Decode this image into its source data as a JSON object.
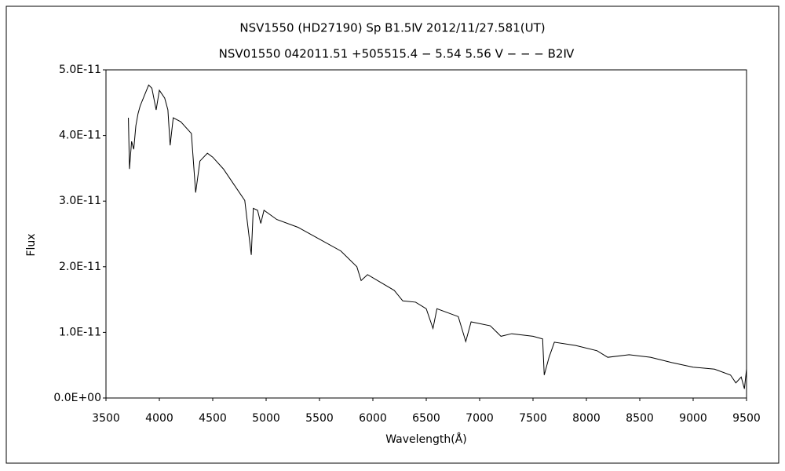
{
  "chart_data": {
    "type": "line",
    "title": "NSV1550 (HD27190)   Sp B1.5Ⅳ   2012/11/27.581(UT)",
    "subtitle": "NSV01550 042011.51 +505515.4 − 5.54 5.56 V − − − B2Ⅳ",
    "x_label": "Wavelength(Å)",
    "y_label": "Flux",
    "color": "#000000",
    "x": [
      3710,
      3720,
      3740,
      3760,
      3780,
      3800,
      3820,
      3850,
      3880,
      3900,
      3930,
      3970,
      4000,
      4050,
      4080,
      4101,
      4130,
      4200,
      4300,
      4340,
      4380,
      4450,
      4500,
      4600,
      4700,
      4800,
      4861,
      4880,
      4920,
      4950,
      4980,
      5100,
      5300,
      5500,
      5700,
      5850,
      5890,
      5950,
      6200,
      6280,
      6400,
      6500,
      6563,
      6600,
      6700,
      6800,
      6870,
      6920,
      7100,
      7200,
      7300,
      7500,
      7590,
      7605,
      7650,
      7700,
      7900,
      8100,
      8200,
      8400,
      8600,
      8800,
      9000,
      9200,
      9350,
      9400,
      9450,
      9480,
      9500
    ],
    "values": [
      4.27e-11,
      3.49e-11,
      3.91e-11,
      3.79e-11,
      4.15e-11,
      4.33e-11,
      4.45e-11,
      4.57e-11,
      4.69e-11,
      4.77e-11,
      4.72e-11,
      4.39e-11,
      4.69e-11,
      4.57e-11,
      4.39e-11,
      3.85e-11,
      4.27e-11,
      4.21e-11,
      4.03e-11,
      3.13e-11,
      3.61e-11,
      3.73e-11,
      3.67e-11,
      3.49e-11,
      3.25e-11,
      3.01e-11,
      2.18e-11,
      2.89e-11,
      2.86e-11,
      2.66e-11,
      2.86e-11,
      2.72e-11,
      2.6e-11,
      2.42e-11,
      2.24e-11,
      2e-11,
      1.79e-11,
      1.88e-11,
      1.64e-11,
      1.48e-11,
      1.46e-11,
      1.36e-11,
      1.06e-11,
      1.36e-11,
      1.3e-11,
      1.24e-11,
      8.6e-12,
      1.16e-11,
      1.1e-11,
      9.4e-12,
      9.8e-12,
      9.4e-12,
      9e-12,
      3.5e-12,
      6.2e-12,
      8.5e-12,
      8e-12,
      7.2e-12,
      6.2e-12,
      6.6e-12,
      6.2e-12,
      5.4e-12,
      4.7e-12,
      4.4e-12,
      3.5e-12,
      2.3e-12,
      3.2e-12,
      1.4e-12,
      4.4e-12
    ],
    "xlim": [
      3500,
      9500
    ],
    "xticks": [
      3500,
      4000,
      4500,
      5000,
      5500,
      6000,
      6500,
      7000,
      7500,
      8000,
      8500,
      9000,
      9500
    ],
    "ylim": [
      0,
      5e-11
    ],
    "yticks": [
      {
        "value": 0,
        "label": "0.0E+00"
      },
      {
        "value": 1e-11,
        "label": "1.0E-11"
      },
      {
        "value": 2e-11,
        "label": "2.0E-11"
      },
      {
        "value": 3e-11,
        "label": "3.0E-11"
      },
      {
        "value": 4e-11,
        "label": "4.0E-11"
      },
      {
        "value": 5e-11,
        "label": "5.0E-11"
      }
    ],
    "grid": false
  }
}
